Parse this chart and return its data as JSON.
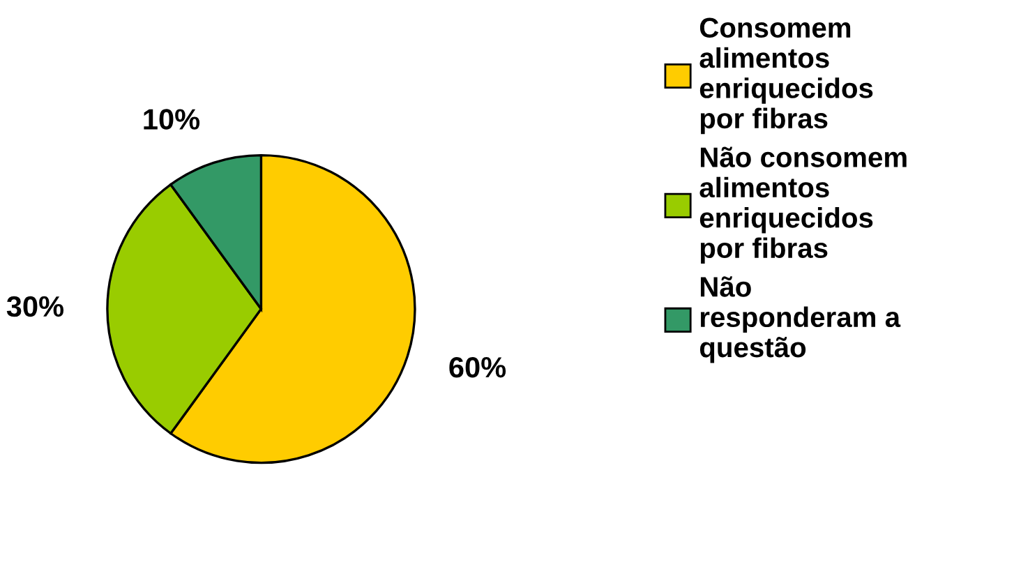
{
  "chart_data": {
    "type": "pie",
    "categories": [
      "Consomem\nalimentos\nenriquecidos\npor fibras",
      "Não consomem\nalimentos\nenriquecidos\npor fibras",
      "Não\nresponderam a\nquestão"
    ],
    "values": [
      60,
      30,
      10
    ],
    "colors": [
      "#ffcc00",
      "#99cc00",
      "#339966"
    ],
    "value_labels": [
      "60%",
      "30%",
      "10%"
    ],
    "legend": "right"
  }
}
